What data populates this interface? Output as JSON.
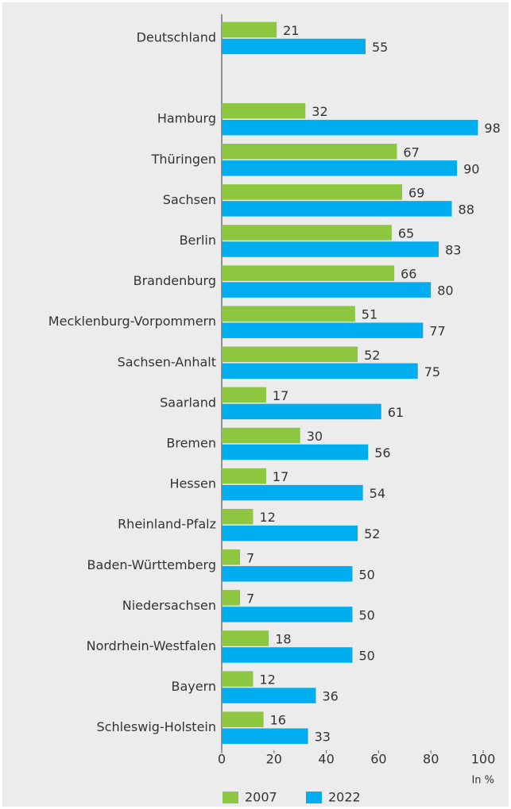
{
  "chart_data": {
    "type": "hbar",
    "categories": [
      "Deutschland",
      null,
      "Hamburg",
      "Thüringen",
      "Sachsen",
      "Berlin",
      "Brandenburg",
      "Mecklenburg-Vorpommern",
      "Sachsen-Anhalt",
      "Saarland",
      "Bremen",
      "Hessen",
      "Rheinland-Pfalz",
      "Baden-Württemberg",
      "Niedersachsen",
      "Nordrhein-Westfalen",
      "Bayern",
      "Schleswig-Holstein"
    ],
    "series": [
      {
        "name": "2007",
        "color": "#8dc63f",
        "values": [
          21,
          null,
          32,
          67,
          69,
          65,
          66,
          51,
          52,
          17,
          30,
          17,
          12,
          7,
          7,
          18,
          12,
          16
        ]
      },
      {
        "name": "2022",
        "color": "#00aeef",
        "values": [
          55,
          null,
          98,
          90,
          88,
          83,
          80,
          77,
          75,
          61,
          56,
          54,
          52,
          50,
          50,
          50,
          36,
          33
        ]
      }
    ],
    "xlim": [
      0,
      100
    ],
    "xticks": [
      0,
      20,
      40,
      60,
      80,
      100
    ],
    "x_unit": "In %",
    "legend": "bottom"
  }
}
